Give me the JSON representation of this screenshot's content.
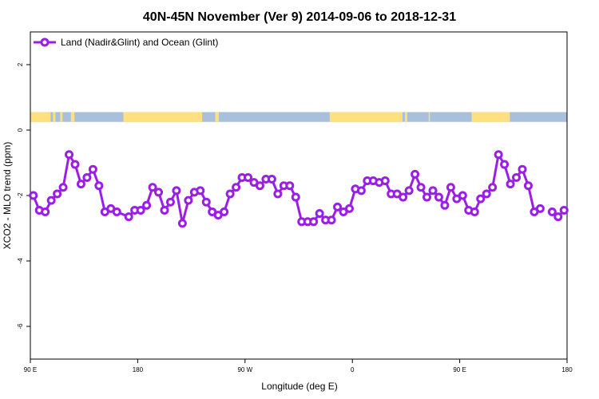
{
  "chart_data": {
    "type": "line",
    "title": "40N-45N November (Ver 9)   2014-09-06 to 2018-12-31",
    "xlabel": "Longitude (deg E)",
    "ylabel": "XCO2 - MLO trend (ppm)",
    "x_ticks": [
      {
        "value": 90,
        "label": "90 E"
      },
      {
        "value": 180,
        "label": "180"
      },
      {
        "value": 270,
        "label": "90 W"
      },
      {
        "value": 360,
        "label": "0"
      },
      {
        "value": 450,
        "label": "90 E"
      },
      {
        "value": 540,
        "label": "180"
      }
    ],
    "y_ticks": [
      {
        "value": 2,
        "label": "2"
      },
      {
        "value": 0,
        "label": "0"
      },
      {
        "value": -2,
        "label": "-2"
      },
      {
        "value": -4,
        "label": "-4"
      },
      {
        "value": -6,
        "label": "-6"
      }
    ],
    "xlim": [
      90,
      540
    ],
    "ylim": [
      -7,
      3
    ],
    "legend_position": "top-left",
    "series": [
      {
        "name": "Land (Nadir&Glint) and Ocean (Glint)",
        "color": "#9a1ee6",
        "x": [
          92.5,
          97.5,
          102.5,
          107.5,
          112.5,
          117.5,
          122.5,
          127.5,
          132.5,
          137.5,
          142.5,
          147.5,
          152.5,
          157.5,
          162.5,
          172.5,
          177.5,
          182.5,
          187.5,
          192.5,
          197.5,
          202.5,
          207.5,
          212.5,
          217.5,
          222.5,
          227.5,
          232.5,
          237.5,
          242.5,
          247.5,
          252.5,
          257.5,
          262.5,
          267.5,
          272.5,
          277.5,
          282.5,
          287.5,
          292.5,
          297.5,
          302.5,
          307.5,
          312.5,
          317.5,
          322.5,
          327.5,
          332.5,
          337.5,
          342.5,
          347.5,
          352.5,
          357.5,
          362.5,
          367.5,
          372.5,
          377.5,
          382.5,
          387.5,
          392.5,
          397.5,
          402.5,
          407.5,
          412.5,
          417.5,
          422.5,
          427.5,
          432.5,
          437.5,
          442.5,
          447.5,
          452.5,
          457.5,
          462.5,
          467.5,
          472.5,
          477.5,
          482.5,
          487.5,
          492.5,
          497.5,
          502.5,
          507.5,
          512.5,
          517.5,
          527.5,
          532.5,
          537.5
        ],
        "values": [
          -2.0,
          -2.45,
          -2.5,
          -2.15,
          -1.95,
          -1.75,
          -0.75,
          -1.05,
          -1.65,
          -1.45,
          -1.2,
          -1.7,
          -2.5,
          -2.4,
          -2.5,
          -2.65,
          -2.45,
          -2.45,
          -2.3,
          -1.75,
          -1.9,
          -2.45,
          -2.2,
          -1.85,
          -2.85,
          -2.15,
          -1.9,
          -1.85,
          -2.2,
          -2.5,
          -2.6,
          -2.5,
          -1.95,
          -1.75,
          -1.45,
          -1.45,
          -1.6,
          -1.7,
          -1.5,
          -1.5,
          -1.95,
          -1.7,
          -1.7,
          -2.05,
          -2.8,
          -2.8,
          -2.8,
          -2.55,
          -2.75,
          -2.75,
          -2.35,
          -2.5,
          -2.4,
          -1.8,
          -1.85,
          -1.55,
          -1.55,
          -1.6,
          -1.55,
          -1.95,
          -1.95,
          -2.05,
          -1.85,
          -1.35,
          -1.75,
          -2.05,
          -1.85,
          -2.05,
          -2.3,
          -1.75,
          -2.1,
          -2.0,
          -2.45,
          -2.5,
          -2.1,
          -1.95,
          -1.75,
          -0.75,
          -1.05,
          -1.65,
          -1.45,
          -1.2,
          -1.7,
          -2.5,
          -2.4,
          -2.5,
          -2.65,
          -2.45
        ],
        "segments": [
          [
            0,
            12
          ],
          [
            13,
            84
          ],
          [
            85,
            88
          ]
        ]
      }
    ],
    "surface_strip": {
      "y_range": [
        0.25,
        0.55
      ],
      "land_color": "#ffe080",
      "ocean_color": "#a8c0dc"
    }
  }
}
